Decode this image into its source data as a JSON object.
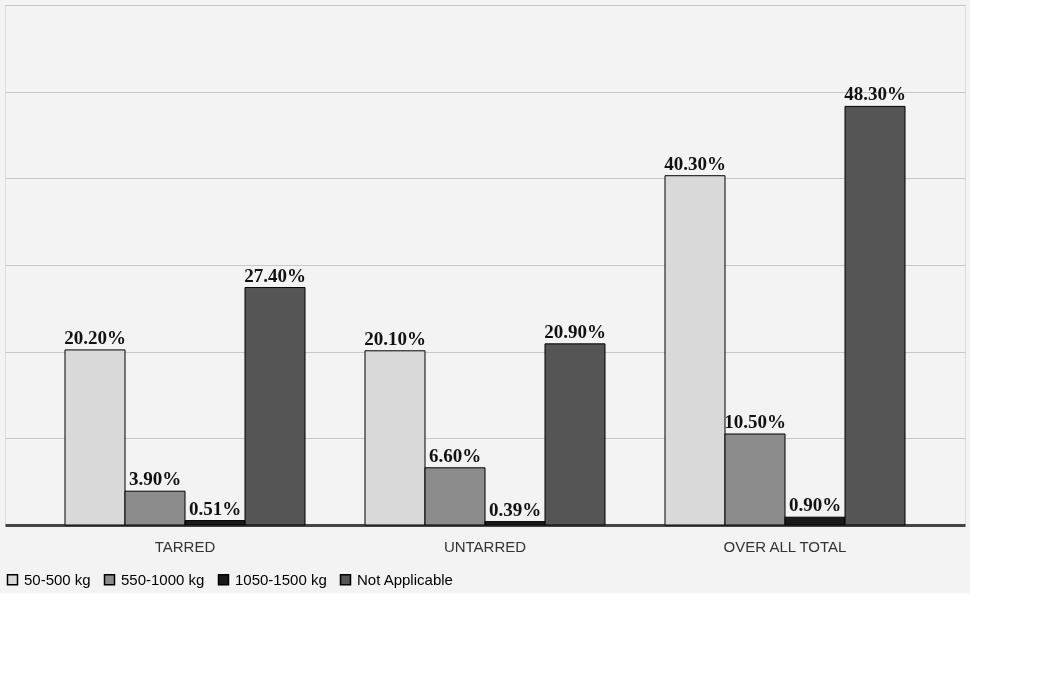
{
  "chart_data": {
    "type": "bar",
    "categories": [
      "TARRED",
      "UNTARRED",
      "OVER ALL TOTAL"
    ],
    "series": [
      {
        "name": "50-500 kg",
        "color": "#d9d9d9",
        "values": [
          20.2,
          20.1,
          40.3
        ],
        "value_labels": [
          "20.20%",
          "20.10%",
          "40.30%"
        ]
      },
      {
        "name": "550-1000 kg",
        "color": "#8c8c8c",
        "values": [
          3.9,
          6.6,
          10.5
        ],
        "value_labels": [
          "3.90%",
          "6.60%",
          "10.50%"
        ]
      },
      {
        "name": "1050-1500 kg",
        "color": "#1a1a1a",
        "values": [
          0.51,
          0.39,
          0.9
        ],
        "value_labels": [
          "0.51%",
          "0.39%",
          "0.90%"
        ]
      },
      {
        "name": "Not Applicable",
        "color": "#555555",
        "values": [
          27.4,
          20.9,
          48.3
        ],
        "value_labels": [
          "27.40%",
          "20.90%",
          "48.30%"
        ]
      }
    ],
    "ylim": [
      0,
      60
    ],
    "yticks": [
      {
        "value": 0,
        "label": null
      },
      {
        "value": 10,
        "label": null
      },
      {
        "value": 20,
        "label": null
      },
      {
        "value": 30,
        "label": null
      },
      {
        "value": 40,
        "label": null
      },
      {
        "value": 50,
        "label": null
      },
      {
        "value": 60,
        "label": null
      }
    ],
    "grid": "y",
    "legend": "bottom",
    "tick_labels": "x"
  }
}
